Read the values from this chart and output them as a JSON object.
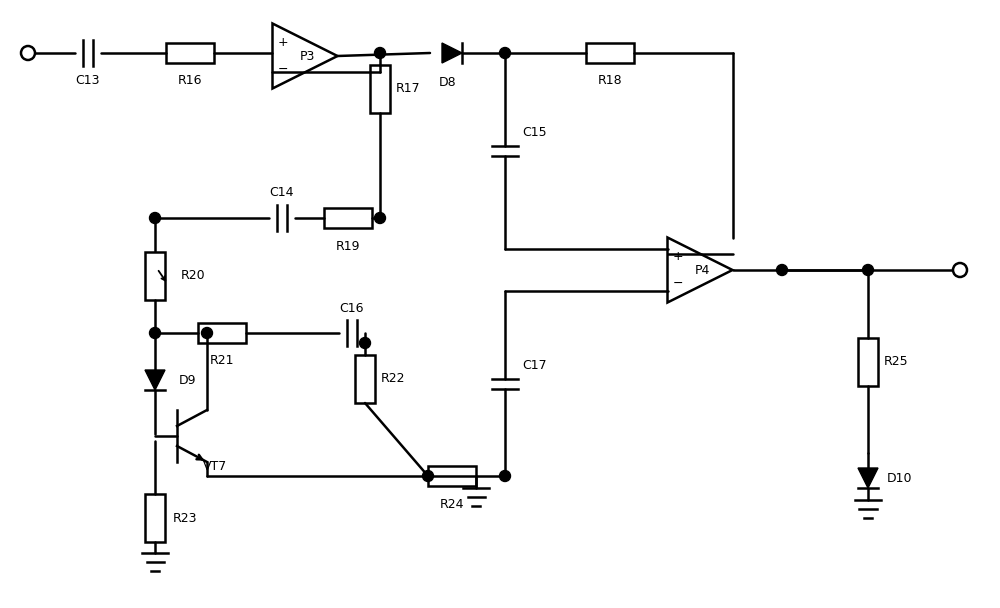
{
  "background": "#ffffff",
  "lc": "#000000",
  "lw": 1.8,
  "fw": 10.0,
  "fh": 6.08,
  "xlim": [
    0,
    10
  ],
  "ylim": [
    0,
    6.08
  ]
}
